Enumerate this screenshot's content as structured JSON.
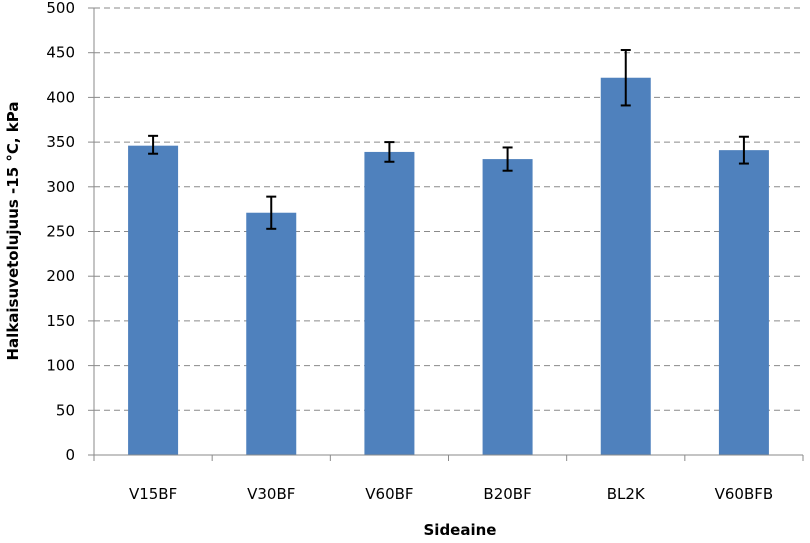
{
  "chart_data": {
    "type": "bar",
    "title": "",
    "xlabel": "Sideaine",
    "ylabel": "Halkaisuvetolujuus -15 °C, kPa",
    "categories": [
      "V15BF",
      "V30BF",
      "V60BF",
      "B20BF",
      "BL2K",
      "V60BFB"
    ],
    "series": [
      {
        "values": [
          346,
          271,
          339,
          331,
          422,
          341
        ],
        "error_low": [
          337,
          253,
          328,
          318,
          391,
          326
        ],
        "error_high": [
          357,
          289,
          350,
          344,
          453,
          356
        ],
        "color": "#4F81BD"
      }
    ],
    "ylim": [
      0,
      500
    ],
    "yticks": [
      0,
      50,
      100,
      150,
      200,
      250,
      300,
      350,
      400,
      450,
      500
    ],
    "grid": true,
    "grid_style": "dashed",
    "legend": "none"
  }
}
